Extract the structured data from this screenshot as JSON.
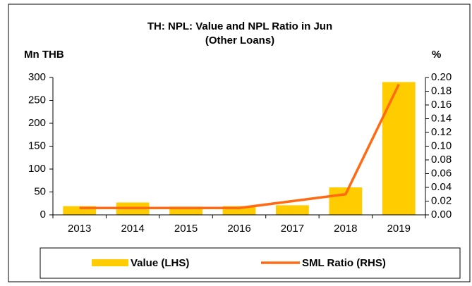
{
  "chart_data": {
    "type": "bar-line",
    "title_lines": [
      "TH: NPL: Value and NPL Ratio in  Jun",
      "(Other Loans)"
    ],
    "y_label": "Mn THB",
    "y2_label": "%",
    "categories": [
      "2013",
      "2014",
      "2015",
      "2016",
      "2017",
      "2018",
      "2019"
    ],
    "series": [
      {
        "name": "Value (LHS)",
        "type": "bar",
        "color": "#ffcc00",
        "values": [
          19,
          27,
          18,
          19,
          21,
          60,
          290
        ]
      },
      {
        "name": "SML Ratio (RHS)",
        "type": "line",
        "axis": "y2",
        "color": "#ff6a13",
        "values": [
          0.01,
          0.01,
          0.01,
          0.01,
          0.02,
          0.03,
          0.19
        ]
      }
    ],
    "ylim": [
      0,
      300
    ],
    "yticks": [
      0,
      50,
      100,
      150,
      200,
      250,
      300
    ],
    "y2lim": [
      0,
      0.2
    ],
    "y2ticks": [
      {
        "value": 0,
        "label": "0.00"
      },
      {
        "value": 0.02,
        "label": "0.02"
      },
      {
        "value": 0.04,
        "label": "0.04"
      },
      {
        "value": 0.06,
        "label": "0.06"
      },
      {
        "value": 0.08,
        "label": "0.08"
      },
      {
        "value": 0.1,
        "label": "0.10"
      },
      {
        "value": 0.12,
        "label": "0.12"
      },
      {
        "value": 0.14,
        "label": "0.14"
      },
      {
        "value": 0.16,
        "label": "0.16"
      },
      {
        "value": 0.18,
        "label": "0.18"
      },
      {
        "value": 0.2,
        "label": "0.20"
      }
    ],
    "grid": false
  }
}
